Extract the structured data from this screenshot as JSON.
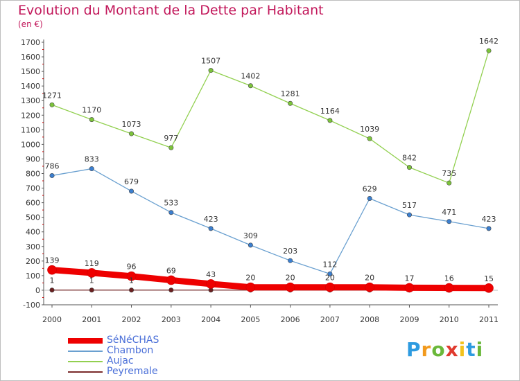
{
  "header": {
    "title": "Evolution du Montant de la Dette par Habitant",
    "subtitle": "(en €)"
  },
  "logo": {
    "letters": [
      "P",
      "r",
      "o",
      "x",
      "i",
      "t",
      "i"
    ],
    "colors": [
      "#2e9be0",
      "#f29a1d",
      "#6ab83a",
      "#e03a2e",
      "#f2c21d",
      "#2e9be0",
      "#6ab83a"
    ]
  },
  "chart_data": {
    "type": "line",
    "x": [
      "2000",
      "2001",
      "2002",
      "2003",
      "2004",
      "2005",
      "2006",
      "2007",
      "2008",
      "2009",
      "2010",
      "2011"
    ],
    "ylim": [
      -100,
      1700
    ],
    "yticks": [
      "-100",
      "0",
      "100",
      "200",
      "300",
      "400",
      "500",
      "600",
      "700",
      "800",
      "900",
      "1000",
      "1100",
      "1200",
      "1300",
      "1400",
      "1500",
      "1600",
      "1700"
    ],
    "grid": false,
    "series": [
      {
        "name": "Aujac",
        "color": "#92d050",
        "dot": "#7cc43a",
        "values": [
          1271,
          1170,
          1073,
          977,
          1507,
          1402,
          1281,
          1164,
          1039,
          842,
          735,
          1642
        ],
        "labels": [
          "1271",
          "1170",
          "1073",
          "977",
          "1507",
          "1402",
          "1281",
          "1164",
          "1039",
          "842",
          "735",
          "1642"
        ]
      },
      {
        "name": "Chambon",
        "color": "#6aa0d0",
        "dot": "#3b7fd0",
        "values": [
          786,
          833,
          679,
          533,
          423,
          309,
          203,
          112,
          629,
          517,
          471,
          423
        ],
        "labels": [
          "786",
          "833",
          "679",
          "533",
          "423",
          "309",
          "203",
          "112",
          "629",
          "517",
          "471",
          "423"
        ]
      },
      {
        "name": "SéNéCHAS",
        "color": "#ee0000",
        "dot": "#ee0000",
        "values": [
          139,
          119,
          96,
          69,
          43,
          20,
          20,
          20,
          20,
          17,
          16,
          15
        ],
        "labels": [
          "139",
          "119",
          "96",
          "69",
          "43",
          "20",
          "20",
          "20",
          "20",
          "17",
          "16",
          "15"
        ]
      },
      {
        "name": "Peyremale",
        "color": "#7a2a2a",
        "dot": "#6b1f1f",
        "values": [
          1,
          1,
          1,
          1,
          1,
          1,
          1,
          1,
          1,
          1,
          1,
          1
        ],
        "labels": [
          "1",
          "1",
          "1",
          "",
          "",
          "",
          "",
          "",
          "",
          "",
          "",
          ""
        ]
      }
    ],
    "legend": [
      "SéNéCHAS",
      "Chambon",
      "Aujac",
      "Peyremale"
    ],
    "legend_placement": "bottom-left"
  }
}
